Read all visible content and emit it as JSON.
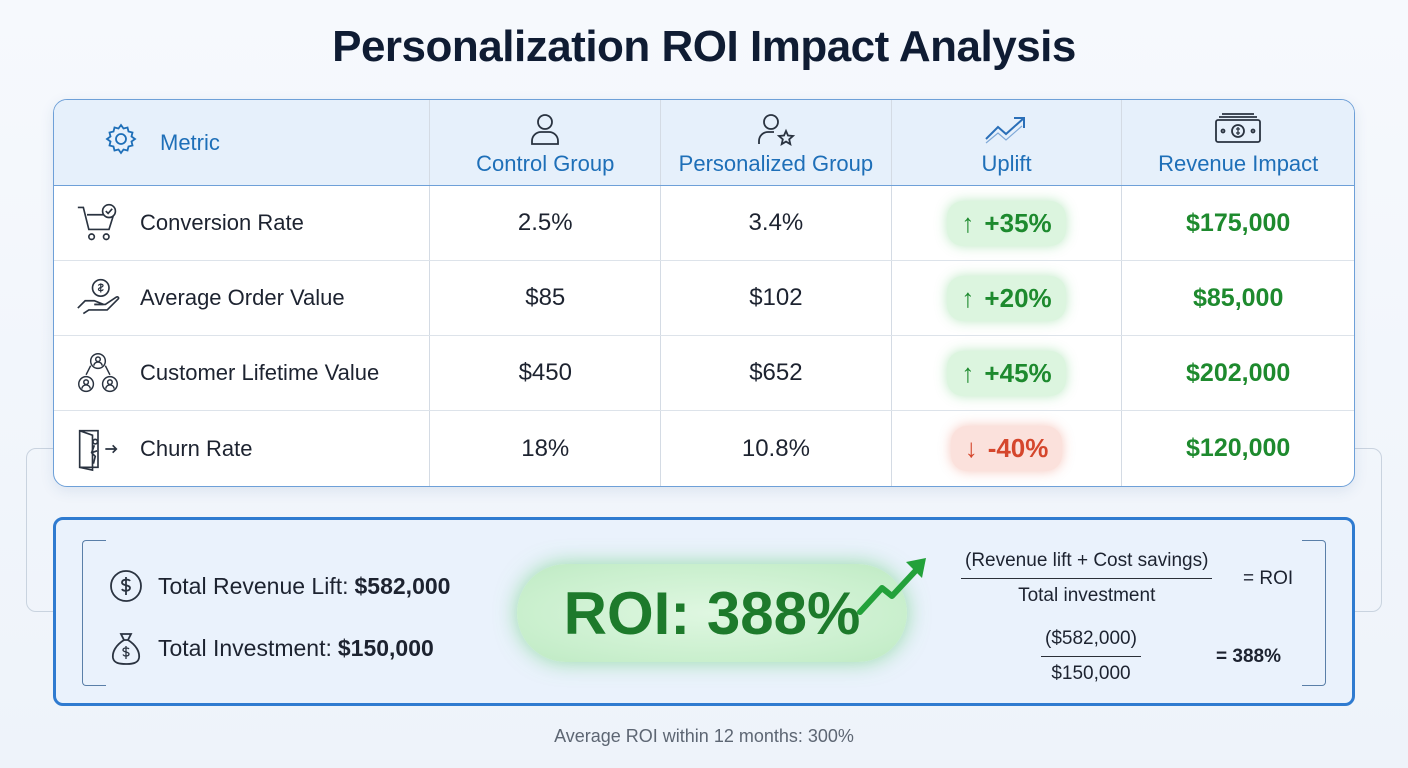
{
  "title": "Personalization ROI Impact Analysis",
  "table": {
    "headers": {
      "metric": "Metric",
      "control": "Control Group",
      "personalized": "Personalized Group",
      "uplift": "Uplift",
      "revenue": "Revenue Impact"
    },
    "header_icons": [
      "gear-icon",
      "user-icon",
      "user-star-icon",
      "trend-up-icon",
      "money-stack-icon"
    ],
    "rows": [
      {
        "icon": "cart-check-icon",
        "metric": "Conversion Rate",
        "control": "2.5%",
        "personalized": "3.4%",
        "uplift_arrow": "↑",
        "uplift": "+35%",
        "direction": "up",
        "revenue": "$175,000"
      },
      {
        "icon": "hand-coin-icon",
        "metric": "Average Order Value",
        "control": "$85",
        "personalized": "$102",
        "uplift_arrow": "↑",
        "uplift": "+20%",
        "direction": "up",
        "revenue": "$85,000"
      },
      {
        "icon": "people-network-icon",
        "metric": "Customer Lifetime Value",
        "control": "$450",
        "personalized": "$652",
        "uplift_arrow": "↑",
        "uplift": "+45%",
        "direction": "up",
        "revenue": "$202,000"
      },
      {
        "icon": "exit-door-icon",
        "metric": "Churn Rate",
        "control": "18%",
        "personalized": "10.8%",
        "uplift_arrow": "↓",
        "uplift": "-40%",
        "direction": "down",
        "revenue": "$120,000"
      }
    ]
  },
  "summary": {
    "revenue_lift_label": "Total Revenue Lift:",
    "revenue_lift_value": "$582,000",
    "investment_label": "Total Investment:",
    "investment_value": "$150,000",
    "roi": "ROI: 388%",
    "formula": {
      "numerator": "(Revenue lift + Cost savings)",
      "denominator": "Total investment",
      "result": "= ROI",
      "num2": "($582,000)",
      "den2": "$150,000",
      "result2": "= 388%"
    }
  },
  "footnote": "Average ROI within 12 months: 300%",
  "colors": {
    "accent": "#1e6fb8",
    "positive": "#1e8a2e",
    "negative": "#d5462c",
    "border": "#2f7bd0"
  }
}
